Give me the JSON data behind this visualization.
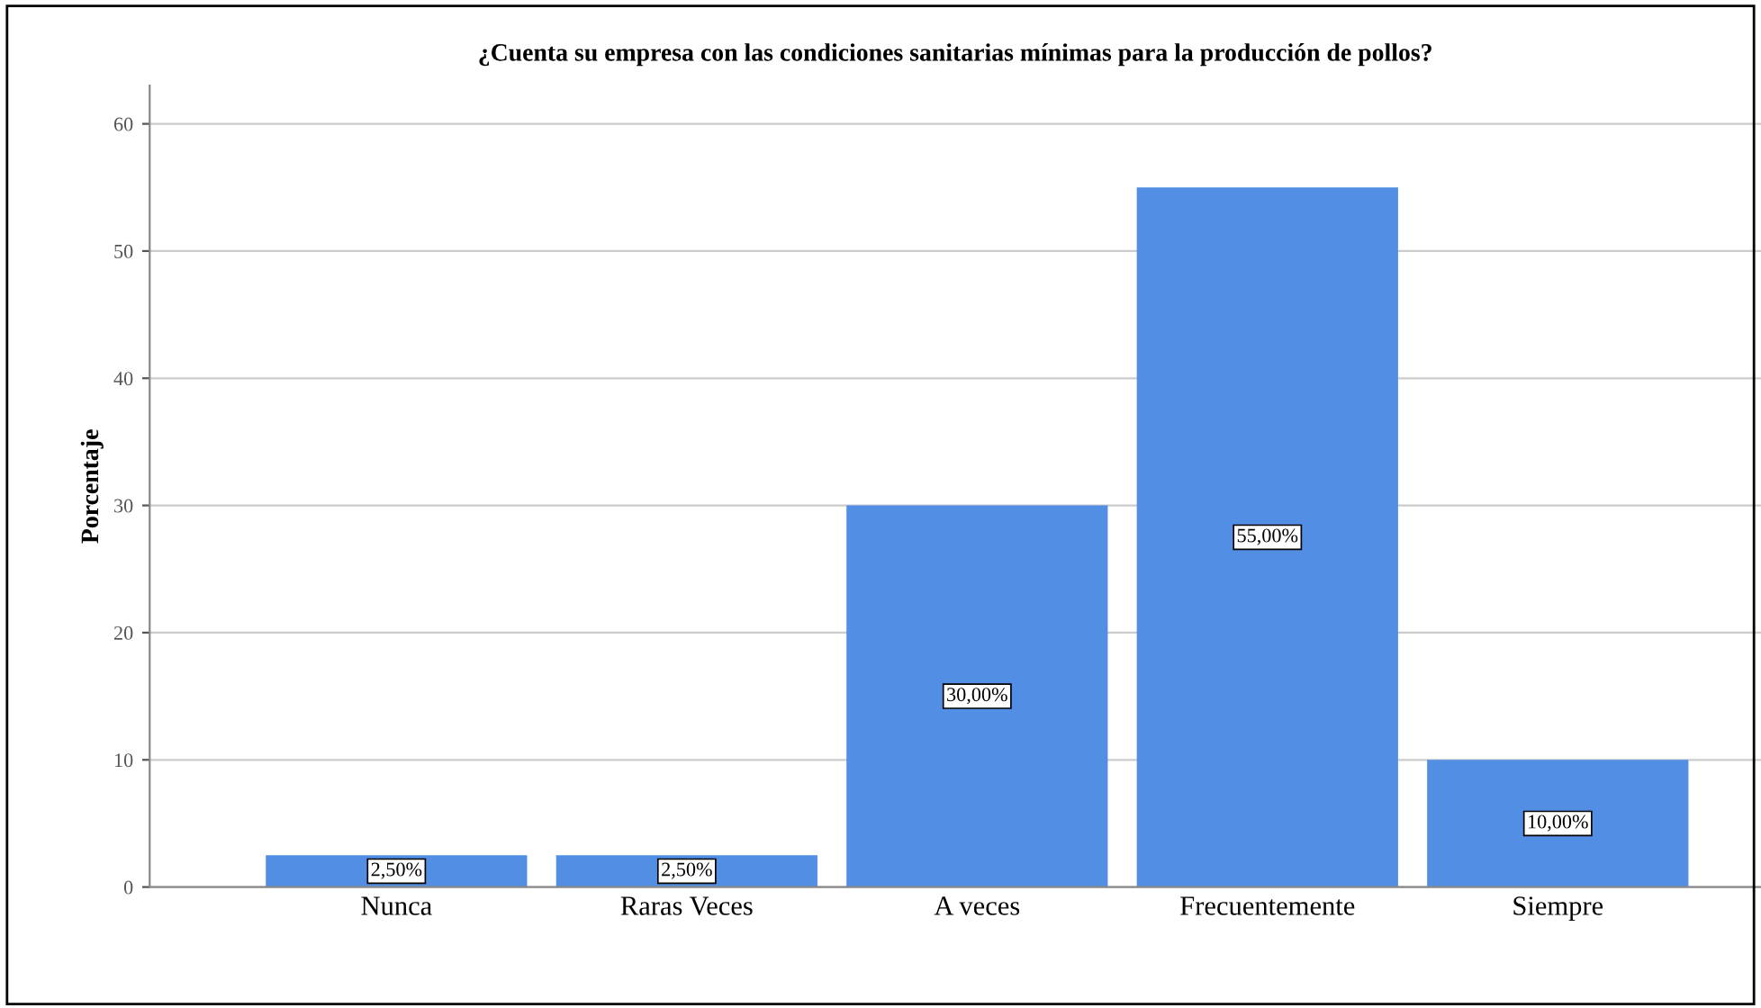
{
  "chart_data": {
    "type": "bar",
    "title": "¿Cuenta su empresa con las condiciones sanitarias mínimas para la producción de pollos?",
    "ylabel": "Porcentaje",
    "categories": [
      "Nunca",
      "Raras Veces",
      "A veces",
      "Frecuentemente",
      "Siempre"
    ],
    "values": [
      2.5,
      2.5,
      30,
      55,
      10
    ],
    "value_labels": [
      "2,50%",
      "2,50%",
      "30,00%",
      "55,00%",
      "10,00%"
    ],
    "color": "#528ee3",
    "ylim": [
      0,
      63
    ],
    "yticks": [
      0,
      10,
      20,
      30,
      40,
      50,
      60
    ],
    "grid": "y"
  }
}
